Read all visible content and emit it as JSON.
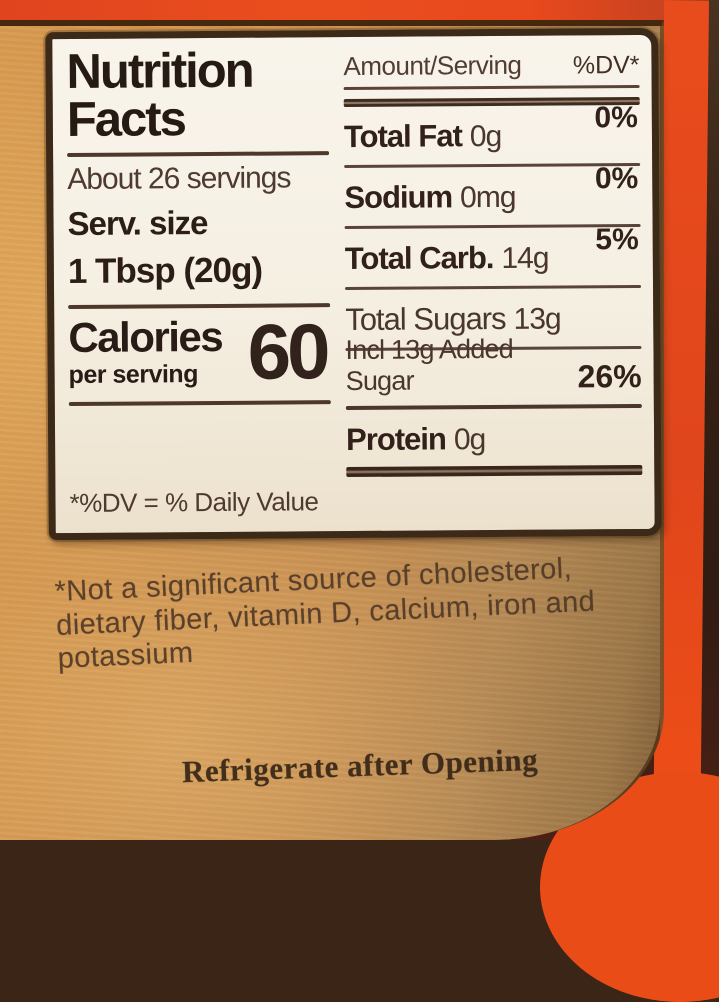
{
  "panel": {
    "title_line1": "Nutrition",
    "title_line2": "Facts",
    "servings": "About 26 servings",
    "serving_size_label": "Serv. size",
    "serving_size_value": "1 Tbsp (20g)",
    "calories_label": "Calories",
    "calories_sublabel": "per serving",
    "calories_value": "60",
    "dv_footnote": "*%DV = % Daily Value",
    "table": {
      "header_amount": "Amount/Serving",
      "header_dv": "%DV*",
      "rows": [
        {
          "name": "Total Fat",
          "amount": "0g",
          "dv": "0%"
        },
        {
          "name": "Sodium",
          "amount": "0mg",
          "dv": "0%"
        },
        {
          "name": "Total Carb.",
          "amount": "14g",
          "dv": "5%"
        },
        {
          "name": "Total Sugars",
          "amount": "13g",
          "dv": ""
        },
        {
          "name": "Incl 13g Added Sugar",
          "amount": "",
          "dv": "26%"
        },
        {
          "name": "Protein",
          "amount": "0g",
          "dv": ""
        }
      ]
    }
  },
  "label": {
    "footnote_lines": [
      "*Not a significant source of cholesterol,",
      "dietary fiber, vitamin D, calcium, iron and",
      "potassium"
    ],
    "storage": "Refrigerate after Opening"
  },
  "colors": {
    "label_gold": "#c69252",
    "panel_bg": "#f5efe2",
    "ink": "#2e1f19",
    "accent_red": "#e84b1c",
    "dark_edge": "#3a2517"
  }
}
